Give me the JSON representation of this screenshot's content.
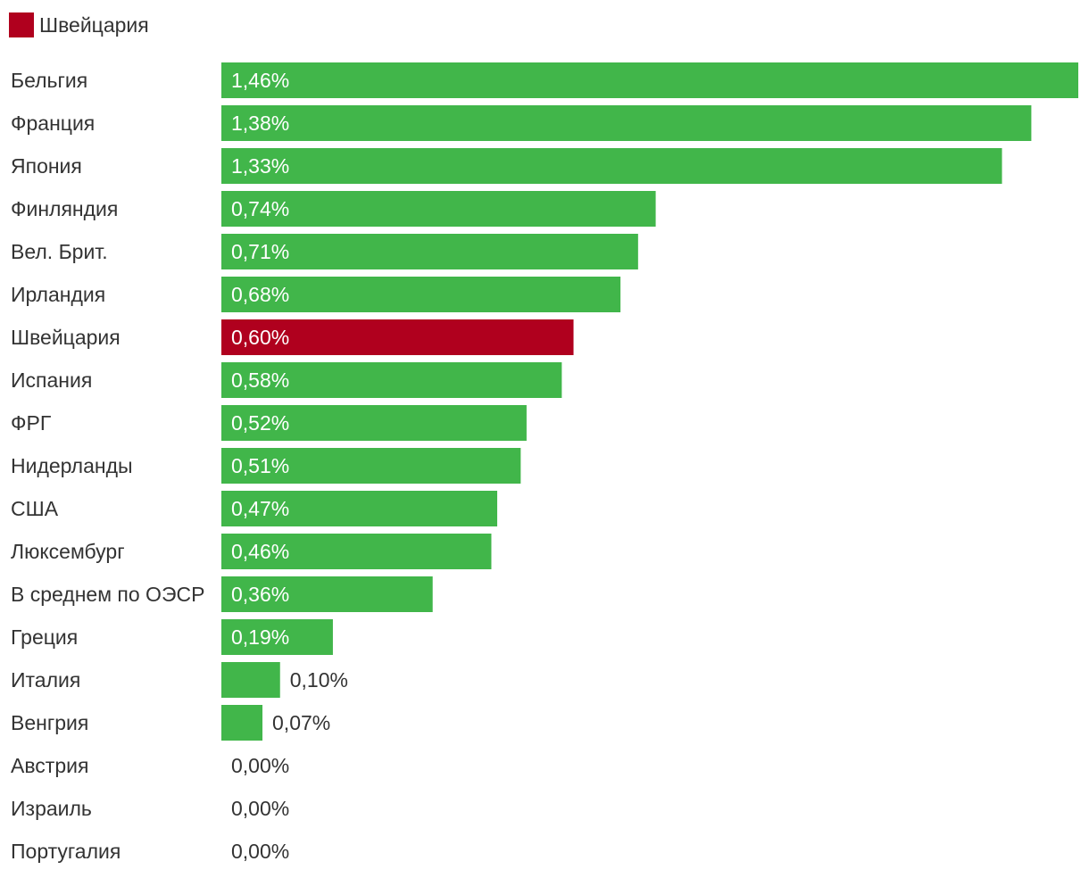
{
  "chart_data": {
    "type": "bar",
    "orientation": "horizontal",
    "legend": {
      "position": "top-left",
      "entries": [
        {
          "label": "Швейцария",
          "color": "#b0001e"
        }
      ]
    },
    "colors": {
      "default": "#41b64a",
      "highlight": "#b0001e"
    },
    "highlight_category": "Швейцария",
    "xlim": [
      0,
      1.46
    ],
    "categories": [
      "Бельгия",
      "Франция",
      "Япония",
      "Финляндия",
      "Вел. Брит.",
      "Ирландия",
      "Швейцария",
      "Испания",
      "ФРГ",
      "Нидерланды",
      "США",
      "Люксембург",
      "В среднем по ОЭСР",
      "Греция",
      "Италия",
      "Венгрия",
      "Австрия",
      "Израиль",
      "Португалия"
    ],
    "values": [
      1.46,
      1.38,
      1.33,
      0.74,
      0.71,
      0.68,
      0.6,
      0.58,
      0.52,
      0.51,
      0.47,
      0.46,
      0.36,
      0.19,
      0.1,
      0.07,
      0.0,
      0.0,
      0.0
    ],
    "value_labels": [
      "1,46%",
      "1,38%",
      "1,33%",
      "0,74%",
      "0,71%",
      "0,68%",
      "0,60%",
      "0,58%",
      "0,52%",
      "0,51%",
      "0,47%",
      "0,46%",
      "0,36%",
      "0,19%",
      "0,10%",
      "0,07%",
      "0,00%",
      "0,00%",
      "0,00%"
    ]
  }
}
